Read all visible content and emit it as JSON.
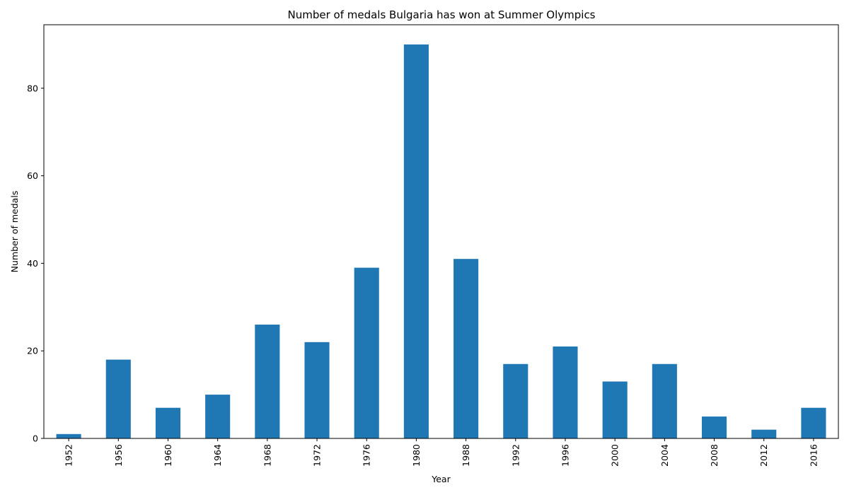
{
  "chart_data": {
    "type": "bar",
    "title": "Number of medals Bulgaria has won at Summer Olympics",
    "xlabel": "Year",
    "ylabel": "Number of medals",
    "categories": [
      "1952",
      "1956",
      "1960",
      "1964",
      "1968",
      "1972",
      "1976",
      "1980",
      "1988",
      "1992",
      "1996",
      "2000",
      "2004",
      "2008",
      "2012",
      "2016"
    ],
    "values": [
      1,
      18,
      7,
      10,
      26,
      22,
      39,
      90,
      41,
      17,
      21,
      13,
      17,
      5,
      2,
      7
    ],
    "ylim": [
      0,
      94.5
    ],
    "yticks": [
      0,
      20,
      40,
      60,
      80
    ],
    "bar_color": "#1f77b4",
    "grid": false,
    "legend": "none"
  }
}
